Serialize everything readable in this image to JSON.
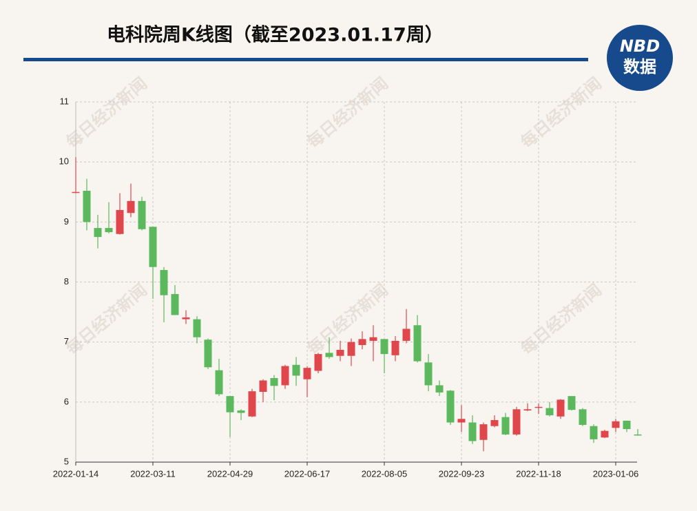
{
  "chart_data": {
    "type": "candlestick",
    "title": "电科院周K线图（截至2023.01.17周）",
    "x": [
      "2022-01-14",
      null,
      null,
      null,
      null,
      null,
      null,
      "2022-03-11",
      null,
      null,
      null,
      null,
      null,
      null,
      "2022-04-29",
      null,
      null,
      null,
      null,
      null,
      null,
      "2022-06-17",
      null,
      null,
      null,
      null,
      null,
      null,
      "2022-08-05",
      null,
      null,
      null,
      null,
      null,
      null,
      "2022-09-23",
      null,
      null,
      null,
      null,
      null,
      null,
      "2022-11-18",
      null,
      null,
      null,
      null,
      null,
      null,
      "2023-01-06",
      null,
      null
    ],
    "open": [
      9.49,
      9.52,
      8.9,
      8.9,
      8.8,
      9.15,
      9.35,
      8.92,
      8.2,
      7.8,
      7.38,
      7.38,
      7.04,
      6.53,
      6.1,
      5.86,
      5.76,
      6.17,
      6.4,
      6.28,
      6.62,
      6.38,
      6.52,
      6.82,
      6.77,
      6.77,
      6.95,
      7.02,
      7.05,
      6.78,
      7.02,
      7.28,
      6.66,
      6.28,
      6.19,
      5.66,
      5.66,
      5.37,
      5.6,
      5.75,
      5.46,
      5.86,
      5.91,
      5.9,
      5.76,
      6.1,
      5.88,
      5.6,
      5.41,
      5.57,
      5.69,
      5.46
    ],
    "high": [
      10.08,
      9.72,
      9.12,
      9.33,
      9.48,
      9.64,
      9.42,
      8.92,
      8.25,
      7.95,
      7.53,
      7.43,
      7.06,
      6.72,
      6.1,
      5.88,
      6.22,
      6.38,
      6.45,
      6.62,
      6.75,
      6.6,
      6.82,
      7.08,
      7.02,
      7.06,
      7.18,
      7.28,
      7.05,
      7.1,
      7.55,
      7.45,
      6.8,
      6.36,
      6.2,
      5.95,
      5.78,
      5.66,
      5.78,
      5.82,
      5.92,
      5.98,
      5.98,
      6.0,
      6.05,
      6.1,
      5.9,
      5.63,
      5.54,
      5.72,
      5.69,
      5.55
    ],
    "low": [
      9.48,
      8.86,
      8.56,
      8.81,
      8.79,
      9.08,
      8.86,
      7.72,
      7.33,
      7.45,
      7.3,
      6.98,
      6.55,
      6.1,
      5.42,
      5.7,
      5.75,
      6.0,
      6.03,
      6.22,
      6.27,
      6.08,
      6.48,
      6.72,
      6.68,
      6.6,
      6.88,
      6.68,
      6.48,
      6.68,
      6.98,
      6.66,
      6.18,
      6.1,
      5.62,
      5.5,
      5.3,
      5.18,
      5.58,
      5.45,
      5.44,
      5.85,
      5.8,
      5.76,
      5.72,
      5.86,
      5.6,
      5.32,
      5.4,
      5.5,
      5.5,
      5.44
    ],
    "close": [
      9.5,
      9.0,
      8.75,
      8.83,
      9.2,
      9.35,
      8.88,
      8.25,
      7.78,
      7.45,
      7.41,
      7.08,
      6.58,
      6.13,
      5.83,
      5.82,
      6.18,
      6.36,
      6.27,
      6.6,
      6.44,
      6.57,
      6.8,
      6.75,
      6.87,
      7.0,
      7.05,
      7.08,
      6.8,
      7.02,
      7.22,
      6.68,
      6.28,
      6.16,
      5.66,
      5.72,
      5.35,
      5.63,
      5.7,
      5.46,
      5.88,
      5.88,
      5.92,
      5.78,
      6.04,
      5.87,
      5.62,
      5.38,
      5.52,
      5.68,
      5.55,
      5.45
    ],
    "ylim": [
      5,
      11
    ],
    "yticks": [
      5,
      6,
      7,
      8,
      9,
      10,
      11
    ],
    "grid": true,
    "up_color": "#e0474c",
    "down_color": "#5cb85c"
  },
  "logo": {
    "brand": "NBD",
    "label": "数据"
  },
  "watermark": "每日经济新闻"
}
